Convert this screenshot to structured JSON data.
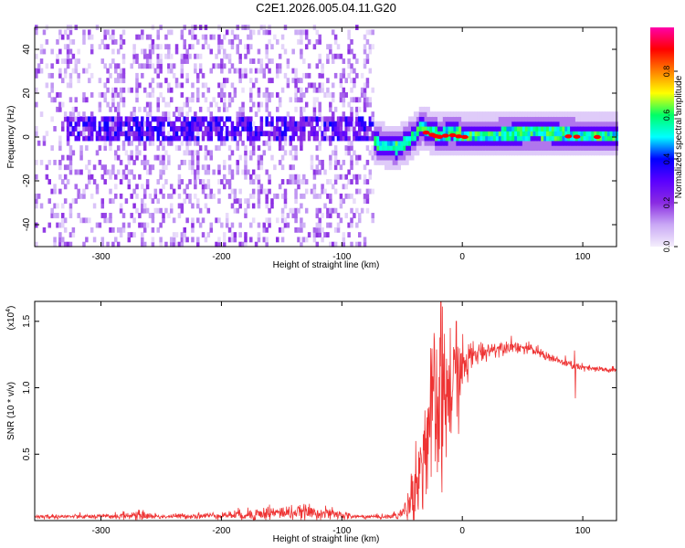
{
  "title": "C2E1.2026.005.04.11.G20",
  "colors": {
    "line": "#ee3333",
    "axis": "#000000",
    "background": "#ffffff"
  },
  "chart_data": [
    {
      "type": "heatmap",
      "name": "spectrogram",
      "xlabel": "Height of straight line (km)",
      "ylabel": "Frequency (Hz)",
      "xlim": [
        -355,
        128
      ],
      "ylim": [
        -50,
        50
      ],
      "xticks": [
        -300,
        -200,
        -100,
        0,
        100
      ],
      "xtick_labels": [
        "-300",
        "-200",
        "-100",
        "0",
        "100"
      ],
      "yticks": [
        -40,
        -20,
        0,
        20,
        40
      ],
      "ytick_labels": [
        "-40",
        "-20",
        "0",
        "20",
        "40"
      ],
      "colorbar": {
        "label": "Normalized spectral amplitude",
        "range": [
          0,
          1
        ],
        "ticks": [
          0.0,
          0.2,
          0.4,
          0.6,
          0.8
        ],
        "tick_labels": [
          "0.0",
          "0.2",
          "0.4",
          "0.6",
          "0.8"
        ],
        "colormap": [
          "#f4eefc",
          "#c9a8f5",
          "#8a2be2",
          "#5a00ff",
          "#0000ff",
          "#00ffff",
          "#00ff66",
          "#ffff00",
          "#ff8000",
          "#ff0000",
          "#ff00aa"
        ]
      },
      "signal_track": {
        "x": [
          -75,
          -65,
          -55,
          -50,
          -45,
          -40,
          -35,
          -30,
          -20,
          -10,
          0,
          20,
          60,
          100,
          128
        ],
        "y": [
          -3,
          -5,
          -6,
          -4,
          -2,
          0,
          4,
          2,
          0,
          1,
          0,
          0,
          1,
          0,
          0
        ],
        "peak_x": [
          -30,
          -25,
          -22,
          -19,
          -14,
          -8,
          -3,
          2,
          88,
          95,
          112
        ]
      },
      "noise_band": {
        "x_range": [
          -355,
          -75
        ],
        "center_freq": 3,
        "half_width": 5
      }
    },
    {
      "type": "line",
      "name": "snr",
      "xlabel": "Height of straight line (km)",
      "ylabel": "SNR (10 * v/v)",
      "scale_label": "(x10",
      "scale_exponent": "4",
      "xlim": [
        -355,
        128
      ],
      "ylim": [
        0,
        1.65
      ],
      "xticks": [
        -300,
        -200,
        -100,
        0,
        100
      ],
      "xtick_labels": [
        "-300",
        "-200",
        "-100",
        "0",
        "100"
      ],
      "yticks": [
        0.5,
        1.0,
        1.5
      ],
      "ytick_labels": [
        "0.5",
        "1.0",
        "1.5"
      ],
      "envelope": {
        "x": [
          -355,
          -300,
          -270,
          -250,
          -200,
          -170,
          -150,
          -120,
          -100,
          -90,
          -75,
          -60,
          -50,
          -45,
          -40,
          -35,
          -30,
          -25,
          -20,
          -15,
          -10,
          -5,
          0,
          10,
          20,
          30,
          40,
          50,
          60,
          70,
          80,
          90,
          100,
          110,
          128
        ],
        "y": [
          0.03,
          0.03,
          0.04,
          0.03,
          0.04,
          0.05,
          0.06,
          0.06,
          0.04,
          0.03,
          0.03,
          0.03,
          0.05,
          0.12,
          0.25,
          0.4,
          0.6,
          0.75,
          0.85,
          0.9,
          0.95,
          1.05,
          1.15,
          1.25,
          1.28,
          1.3,
          1.32,
          1.3,
          1.28,
          1.24,
          1.2,
          1.17,
          1.15,
          1.14,
          1.13
        ],
        "noise": [
          0.01,
          0.01,
          0.02,
          0.01,
          0.015,
          0.03,
          0.03,
          0.03,
          0.02,
          0.01,
          0.01,
          0.01,
          0.03,
          0.08,
          0.15,
          0.2,
          0.3,
          0.35,
          0.4,
          0.35,
          0.3,
          0.2,
          0.12,
          0.06,
          0.04,
          0.03,
          0.03,
          0.025,
          0.025,
          0.02,
          0.02,
          0.02,
          0.015,
          0.015,
          0.015
        ]
      },
      "spikes": [
        {
          "x": -265,
          "y": 0.08
        },
        {
          "x": -160,
          "y": 0.12
        },
        {
          "x": -130,
          "y": 0.12
        },
        {
          "x": -18,
          "y": 1.65
        },
        {
          "x": -10,
          "y": 1.45
        },
        {
          "x": -5,
          "y": 1.5
        },
        {
          "x": 93,
          "y": 1.28
        },
        {
          "x": 94,
          "y": 0.92
        }
      ]
    }
  ]
}
